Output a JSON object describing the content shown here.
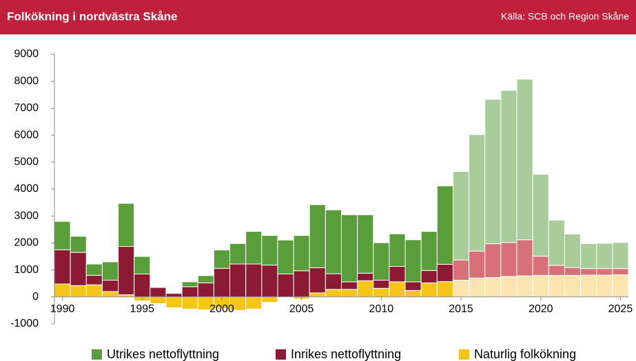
{
  "chart_data": {
    "type": "stacked_bar",
    "title": "Folkökning i nordvästra Skåne",
    "source": "Källa: SCB och Region Skåne",
    "x": [
      1990,
      1991,
      1992,
      1993,
      1994,
      1995,
      1996,
      1997,
      1998,
      1999,
      2000,
      2001,
      2002,
      2003,
      2004,
      2005,
      2006,
      2007,
      2008,
      2009,
      2010,
      2011,
      2012,
      2013,
      2014,
      2015,
      2016,
      2017,
      2018,
      2019,
      2020,
      2021,
      2022,
      2023,
      2024,
      2025
    ],
    "series": [
      {
        "name": "Naturlig folkökning",
        "color": "#f5c518",
        "forecast_color": "#fbe4b0",
        "values": [
          480,
          420,
          450,
          200,
          80,
          -150,
          -250,
          -400,
          -450,
          -480,
          -420,
          -500,
          -450,
          -200,
          -20,
          -80,
          150,
          280,
          280,
          600,
          320,
          560,
          240,
          520,
          570,
          620,
          700,
          720,
          760,
          780,
          800,
          800,
          800,
          810,
          810,
          820
        ]
      },
      {
        "name": "Inrikes nettoflyttning",
        "color": "#8b1a32",
        "forecast_color": "#d57177",
        "values": [
          1270,
          1230,
          350,
          420,
          1790,
          850,
          350,
          130,
          380,
          520,
          1060,
          1220,
          1220,
          1180,
          850,
          970,
          930,
          580,
          280,
          280,
          300,
          570,
          320,
          460,
          640,
          750,
          1000,
          1250,
          1260,
          1340,
          710,
          370,
          290,
          240,
          240,
          230
        ]
      },
      {
        "name": "Utrikes nettoflyttning",
        "color": "#5a9e3c",
        "forecast_color": "#a9cd9a",
        "values": [
          1050,
          600,
          420,
          680,
          1600,
          650,
          0,
          0,
          180,
          270,
          680,
          760,
          1210,
          1100,
          1260,
          1310,
          2340,
          2370,
          2490,
          2170,
          1390,
          1210,
          1560,
          1450,
          2910,
          3280,
          4320,
          5360,
          5640,
          5960,
          3040,
          1680,
          1240,
          930,
          940,
          970
        ]
      }
    ],
    "forecast_from": 2015,
    "legend_order": [
      2,
      1,
      0
    ],
    "legend": "bottom",
    "xlim": [
      1989.5,
      2025.5
    ],
    "xticks": [
      1990,
      1995,
      2000,
      2005,
      2010,
      2015,
      2020,
      2025
    ],
    "ylim": [
      -1000,
      9000
    ],
    "yticks": [
      -1000,
      0,
      1000,
      2000,
      3000,
      4000,
      5000,
      6000,
      7000,
      8000,
      9000
    ]
  }
}
